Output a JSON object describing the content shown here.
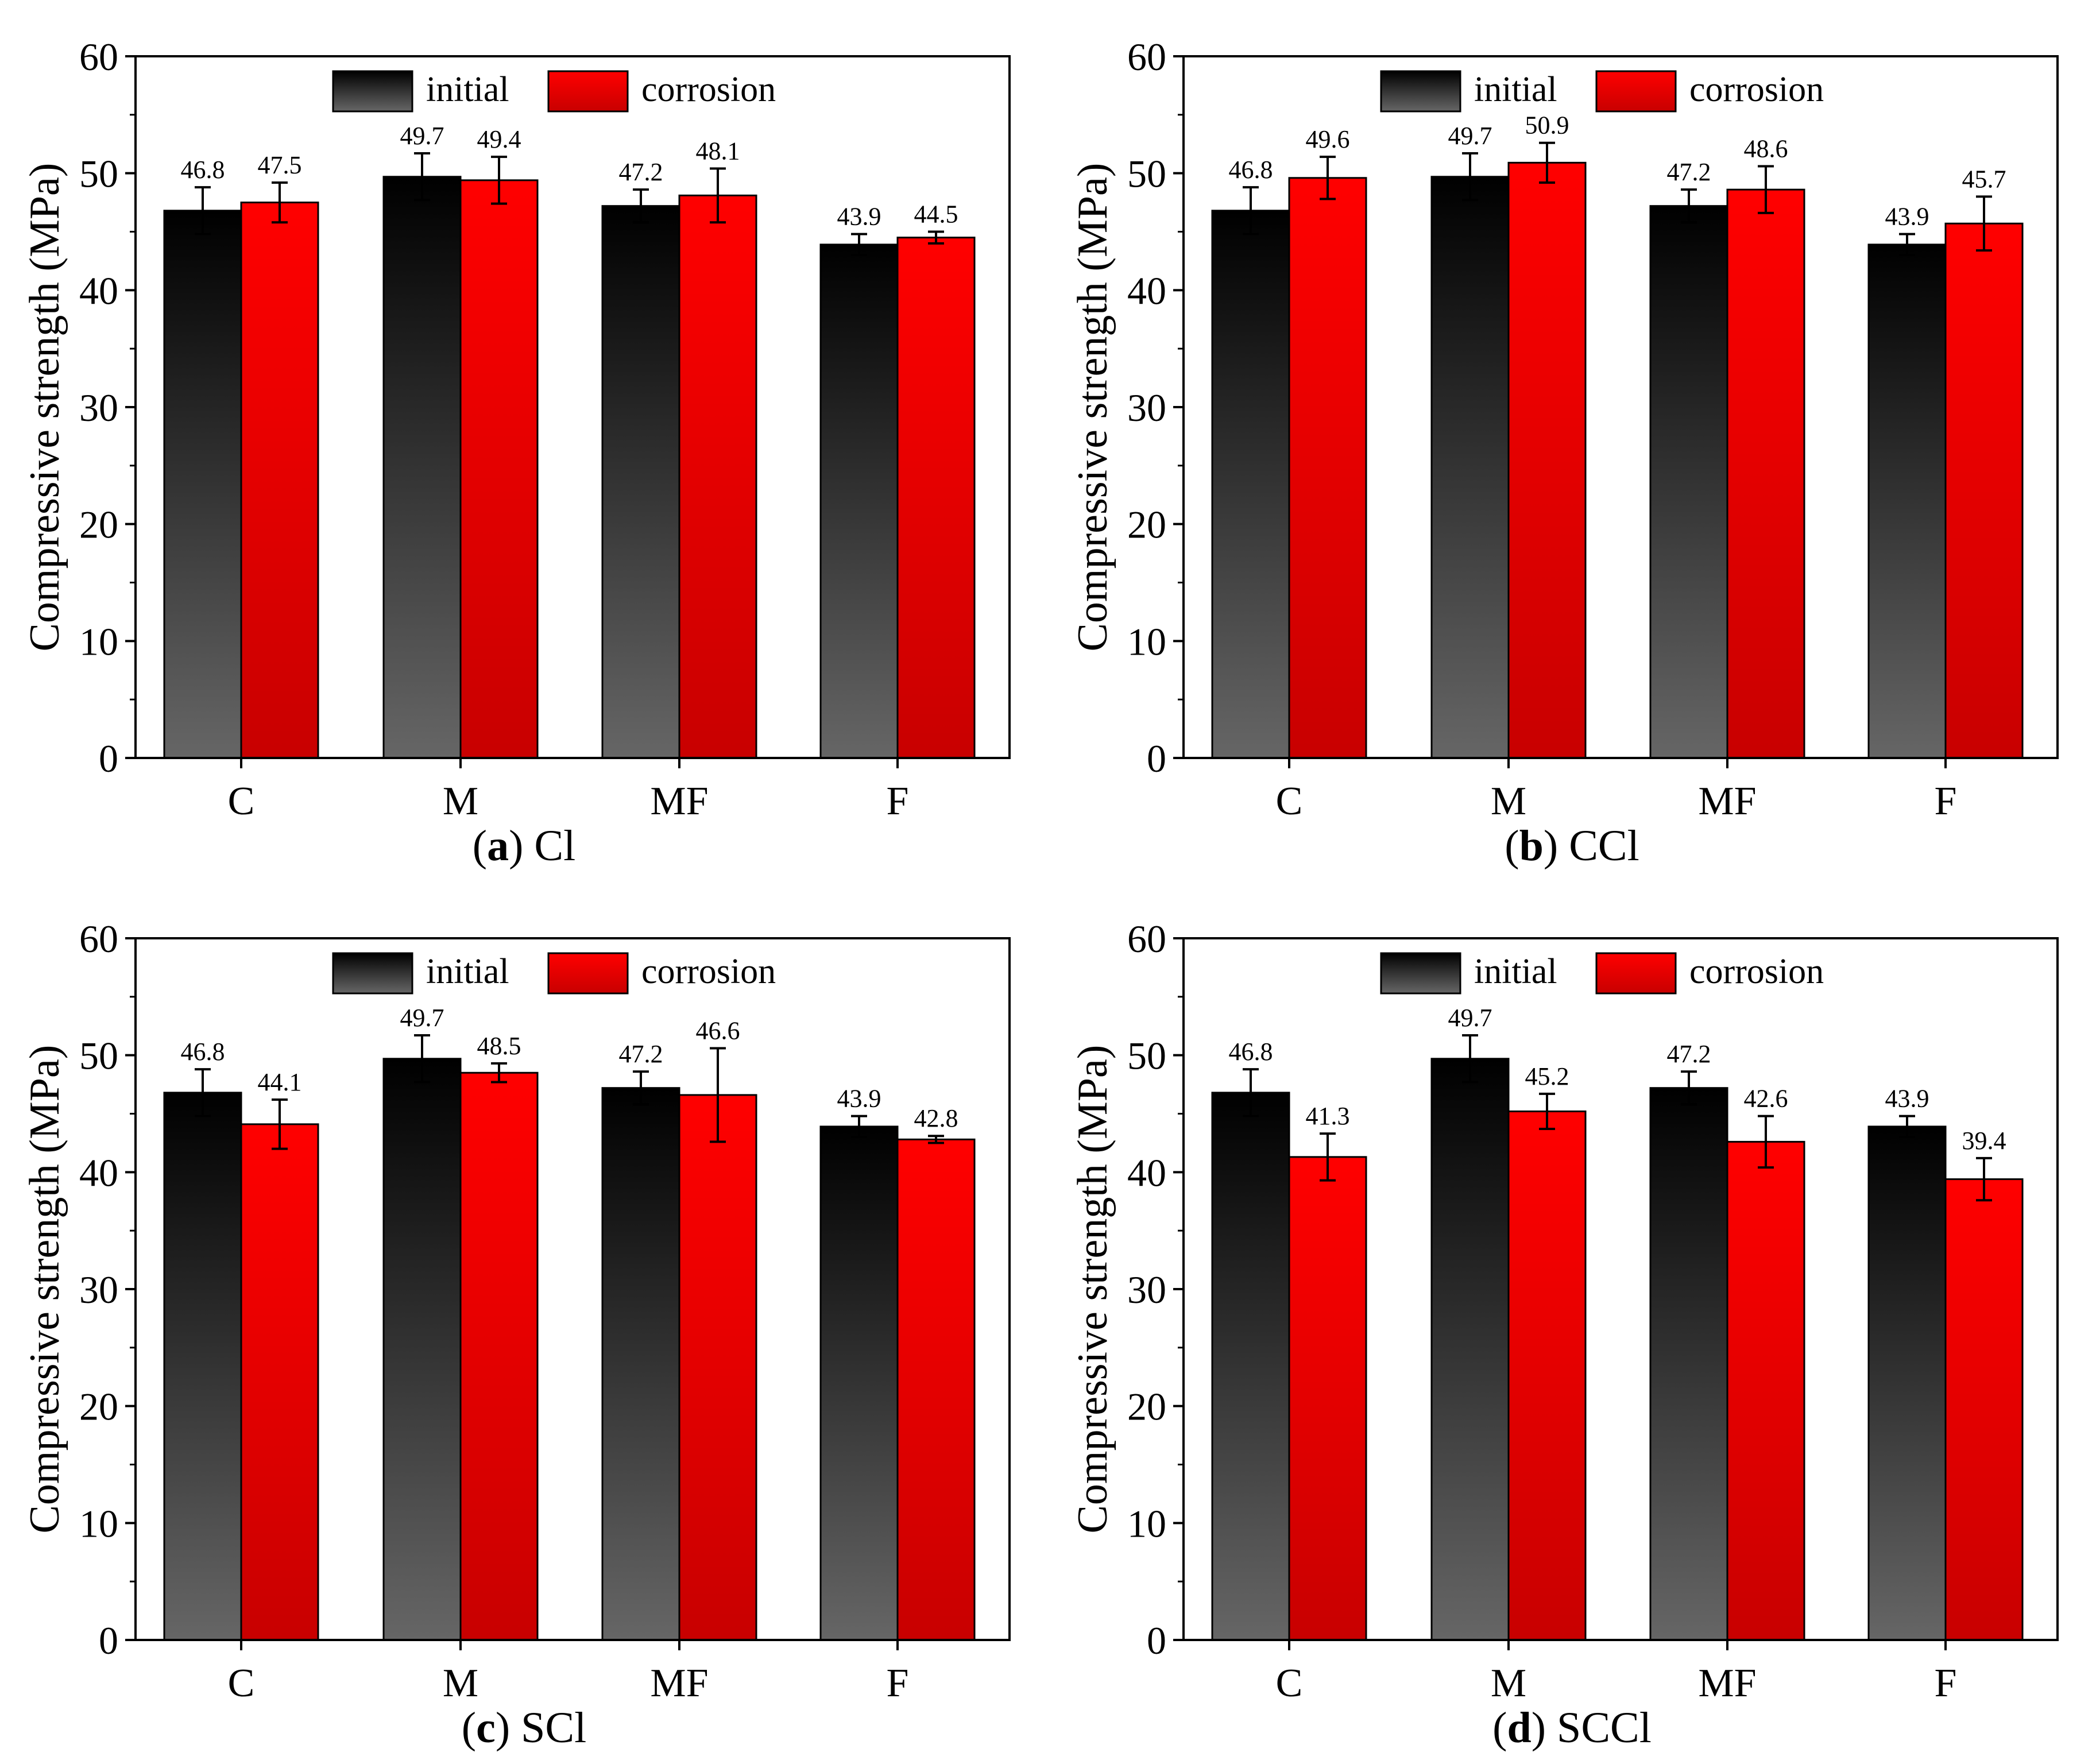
{
  "y_axis_label": "Compressive strength (MPa)",
  "legend": {
    "initial": "initial",
    "corrosion": "corrosion"
  },
  "colors": {
    "initial_top": "#000000",
    "initial_bottom": "#666666",
    "corrosion_top": "#ff0000",
    "corrosion_bottom": "#c80000",
    "axis": "#000000",
    "error_bar": "#000000"
  },
  "chart_data": [
    {
      "type": "bar",
      "caption_tag": "a",
      "caption_left": "(",
      "caption_right": ") Cl",
      "categories": [
        "C",
        "M",
        "MF",
        "F"
      ],
      "ylabel": "Compressive strength (MPa)",
      "ylim": [
        0,
        60
      ],
      "yticks": [
        0,
        10,
        20,
        30,
        40,
        50,
        60
      ],
      "series": [
        {
          "name": "initial",
          "values": [
            46.8,
            49.7,
            47.2,
            43.9
          ],
          "labels": [
            "46.8",
            "49.7",
            "47.2",
            "43.9"
          ],
          "errors": [
            2.0,
            2.0,
            1.4,
            0.9
          ]
        },
        {
          "name": "corrosion",
          "values": [
            47.5,
            49.4,
            48.1,
            44.5
          ],
          "labels": [
            "47.5",
            "49.4",
            "48.1",
            "44.5"
          ],
          "errors": [
            1.7,
            2.0,
            2.3,
            0.5
          ]
        }
      ]
    },
    {
      "type": "bar",
      "caption_tag": "b",
      "caption_left": "(",
      "caption_right": ") CCl",
      "categories": [
        "C",
        "M",
        "MF",
        "F"
      ],
      "ylabel": "Compressive strength (MPa)",
      "ylim": [
        0,
        60
      ],
      "yticks": [
        0,
        10,
        20,
        30,
        40,
        50,
        60
      ],
      "series": [
        {
          "name": "initial",
          "values": [
            46.8,
            49.7,
            47.2,
            43.9
          ],
          "labels": [
            "46.8",
            "49.7",
            "47.2",
            "43.9"
          ],
          "errors": [
            2.0,
            2.0,
            1.4,
            0.9
          ]
        },
        {
          "name": "corrosion",
          "values": [
            49.6,
            50.9,
            48.6,
            45.7
          ],
          "labels": [
            "49.6",
            "50.9",
            "48.6",
            "45.7"
          ],
          "errors": [
            1.8,
            1.7,
            2.0,
            2.3
          ]
        }
      ]
    },
    {
      "type": "bar",
      "caption_tag": "c",
      "caption_left": "(",
      "caption_right": ") SCl",
      "categories": [
        "C",
        "M",
        "MF",
        "F"
      ],
      "ylabel": "Compressive strength (MPa)",
      "ylim": [
        0,
        60
      ],
      "yticks": [
        0,
        10,
        20,
        30,
        40,
        50,
        60
      ],
      "series": [
        {
          "name": "initial",
          "values": [
            46.8,
            49.7,
            47.2,
            43.9
          ],
          "labels": [
            "46.8",
            "49.7",
            "47.2",
            "43.9"
          ],
          "errors": [
            2.0,
            2.0,
            1.4,
            0.9
          ]
        },
        {
          "name": "corrosion",
          "values": [
            44.1,
            48.5,
            46.6,
            42.8
          ],
          "labels": [
            "44.1",
            "48.5",
            "46.6",
            "42.8"
          ],
          "errors": [
            2.1,
            0.8,
            4.0,
            0.3
          ]
        }
      ]
    },
    {
      "type": "bar",
      "caption_tag": "d",
      "caption_left": "(",
      "caption_right": ") SCCl",
      "categories": [
        "C",
        "M",
        "MF",
        "F"
      ],
      "ylabel": "Compressive strength (MPa)",
      "ylim": [
        0,
        60
      ],
      "yticks": [
        0,
        10,
        20,
        30,
        40,
        50,
        60
      ],
      "series": [
        {
          "name": "initial",
          "values": [
            46.8,
            49.7,
            47.2,
            43.9
          ],
          "labels": [
            "46.8",
            "49.7",
            "47.2",
            "43.9"
          ],
          "errors": [
            2.0,
            2.0,
            1.4,
            0.9
          ]
        },
        {
          "name": "corrosion",
          "values": [
            41.3,
            45.2,
            42.6,
            39.4
          ],
          "labels": [
            "41.3",
            "45.2",
            "42.6",
            "39.4"
          ],
          "errors": [
            2.0,
            1.5,
            2.2,
            1.8
          ]
        }
      ]
    }
  ]
}
